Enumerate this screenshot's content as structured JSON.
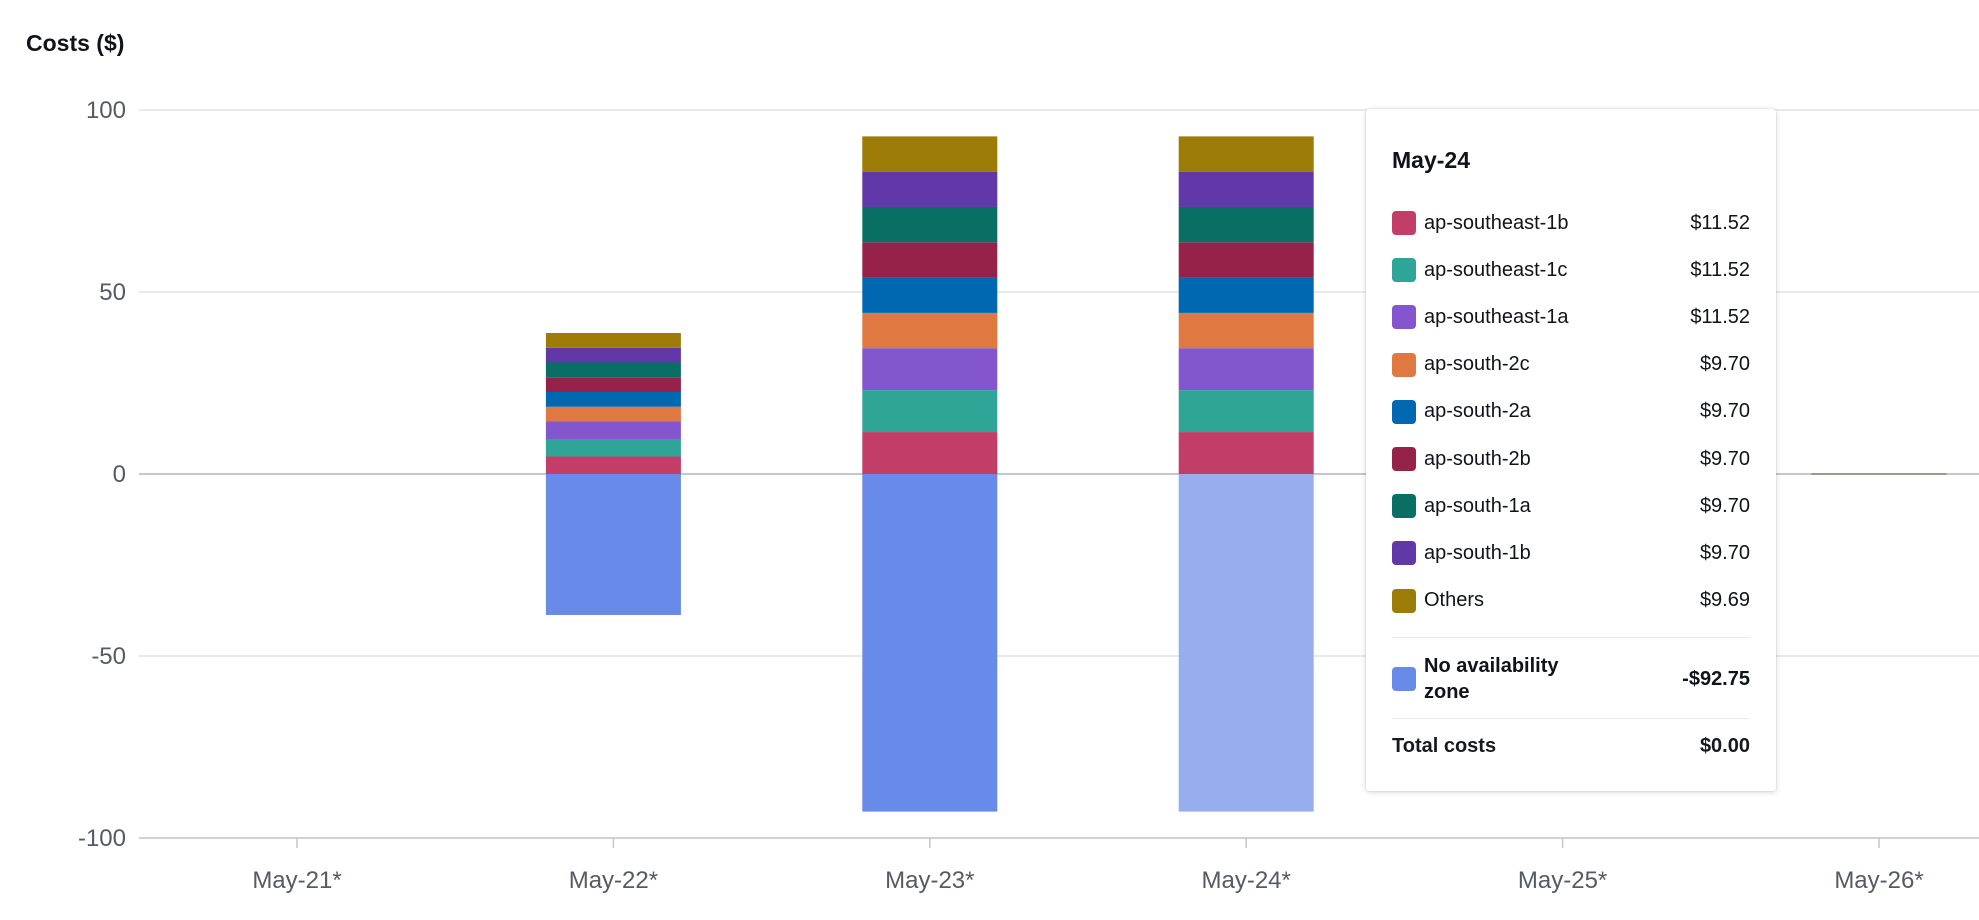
{
  "chart_data": {
    "type": "bar",
    "stacked": true,
    "title": "Costs ($)",
    "ylabel": "Costs ($)",
    "xlabel": "",
    "ylim": [
      -100,
      100
    ],
    "yticks": [
      "100",
      "50",
      "0",
      "-50",
      "-100"
    ],
    "grid": true,
    "categories": [
      "May-21*",
      "May-22*",
      "May-23*",
      "May-24*",
      "May-25*",
      "May-26*"
    ],
    "series": [
      {
        "name": "ap-southeast-1b",
        "color": "#c33d69",
        "values": [
          0,
          4.81,
          11.52,
          11.52,
          0,
          0
        ]
      },
      {
        "name": "ap-southeast-1c",
        "color": "#2ea597",
        "values": [
          0,
          4.81,
          11.52,
          11.52,
          0,
          0
        ]
      },
      {
        "name": "ap-southeast-1a",
        "color": "#8456ce",
        "values": [
          0,
          4.81,
          11.52,
          11.52,
          0,
          0
        ]
      },
      {
        "name": "ap-south-2c",
        "color": "#e07941",
        "values": [
          0,
          4.05,
          9.7,
          9.7,
          0,
          0
        ]
      },
      {
        "name": "ap-south-2a",
        "color": "#0067b1",
        "values": [
          0,
          4.05,
          9.7,
          9.7,
          0,
          0
        ]
      },
      {
        "name": "ap-south-2b",
        "color": "#962249",
        "values": [
          0,
          4.05,
          9.7,
          9.7,
          0,
          0
        ]
      },
      {
        "name": "ap-south-1a",
        "color": "#096f64",
        "values": [
          0,
          4.05,
          9.7,
          9.7,
          0,
          0
        ]
      },
      {
        "name": "ap-south-1b",
        "color": "#6237a7",
        "values": [
          0,
          4.05,
          9.7,
          9.7,
          0,
          0
        ]
      },
      {
        "name": "Others",
        "color": "#9c7b06",
        "values": [
          0,
          4.05,
          9.69,
          9.69,
          0,
          0
        ]
      },
      {
        "name": "No availability zone",
        "color": "#688ae8",
        "values": [
          0,
          -38.73,
          -92.75,
          -92.75,
          0,
          0
        ]
      }
    ],
    "highlighted_category": "May-24*",
    "highlight_color": "#96aeed",
    "zero_marker_color": "#9a9a88"
  },
  "tooltip": {
    "title": "May-24",
    "rows": [
      {
        "label": "ap-southeast-1b",
        "value": "$11.52",
        "color": "#c33d69"
      },
      {
        "label": "ap-southeast-1c",
        "value": "$11.52",
        "color": "#2ea597"
      },
      {
        "label": "ap-southeast-1a",
        "value": "$11.52",
        "color": "#8456ce"
      },
      {
        "label": "ap-south-2c",
        "value": "$9.70",
        "color": "#e07941"
      },
      {
        "label": "ap-south-2a",
        "value": "$9.70",
        "color": "#0067b1"
      },
      {
        "label": "ap-south-2b",
        "value": "$9.70",
        "color": "#962249"
      },
      {
        "label": "ap-south-1a",
        "value": "$9.70",
        "color": "#096f64"
      },
      {
        "label": "ap-south-1b",
        "value": "$9.70",
        "color": "#6237a7"
      },
      {
        "label": "Others",
        "value": "$9.69",
        "color": "#9c7b06"
      }
    ],
    "no_az": {
      "label": "No availability zone",
      "value": "-$92.75",
      "color": "#688ae8"
    },
    "total": {
      "label": "Total costs",
      "value": "$0.00"
    }
  }
}
